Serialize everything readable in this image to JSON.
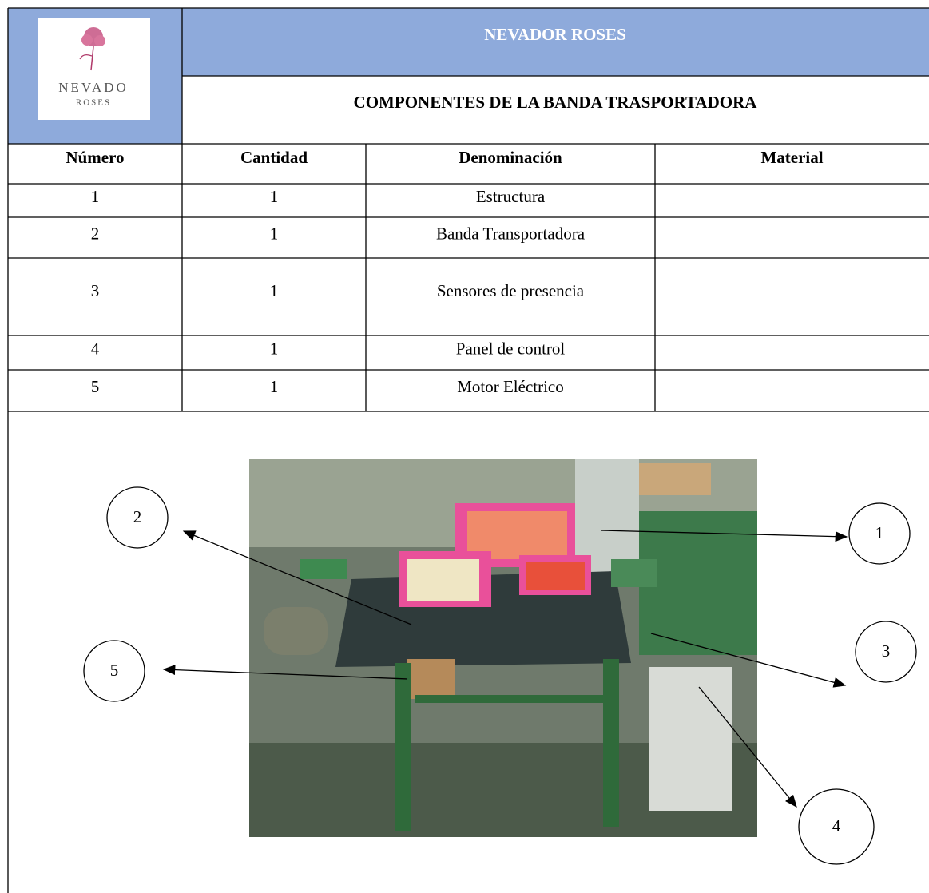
{
  "header": {
    "title": "NEVADOR ROSES",
    "subtitle": "COMPONENTES DE LA BANDA TRASPORTADORA",
    "logo": {
      "name": "NEVADO",
      "tagline": "ROSES"
    }
  },
  "table": {
    "columns": [
      "Número",
      "Cantidad",
      "Denominación",
      "Material"
    ],
    "rows": [
      [
        "1",
        "1",
        "Estructura"
      ],
      [
        "2",
        "1",
        "Banda Transportadora"
      ],
      [
        "3",
        "1",
        "Sensores de presencia"
      ],
      [
        "4",
        "1",
        "Panel de control"
      ],
      [
        "5",
        "1",
        "Motor Eléctrico"
      ]
    ]
  },
  "callouts": [
    "1",
    "2",
    "3",
    "4",
    "5"
  ]
}
